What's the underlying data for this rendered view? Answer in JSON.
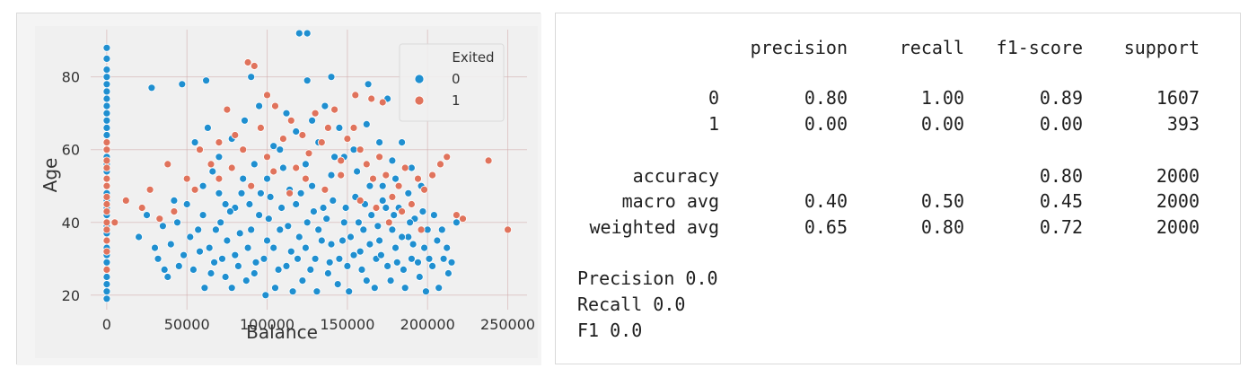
{
  "colors": {
    "class_0": "#1f8fd0",
    "class_1": "#e0735c",
    "panel_bg": "#f0f0f0",
    "grid": "#d0a8a8"
  },
  "chart_data": {
    "type": "scatter",
    "title": "",
    "xlabel": "Balance",
    "ylabel": "Age",
    "xlim": [
      -10000,
      262000
    ],
    "ylim": [
      16,
      93
    ],
    "xticks": [
      0,
      50000,
      100000,
      150000,
      200000,
      250000
    ],
    "yticks": [
      20,
      40,
      60,
      80
    ],
    "grid": true,
    "legend": {
      "title": "Exited",
      "placement": "top-right",
      "entries": [
        "0",
        "1"
      ]
    },
    "series": [
      {
        "name": "0",
        "color": "#1f8fd0",
        "points": [
          [
            0,
            19
          ],
          [
            0,
            21
          ],
          [
            0,
            23
          ],
          [
            0,
            25
          ],
          [
            0,
            27
          ],
          [
            0,
            29
          ],
          [
            0,
            31
          ],
          [
            0,
            33
          ],
          [
            0,
            35
          ],
          [
            0,
            37
          ],
          [
            0,
            39
          ],
          [
            0,
            42
          ],
          [
            0,
            44
          ],
          [
            0,
            46
          ],
          [
            0,
            48
          ],
          [
            0,
            50
          ],
          [
            0,
            52
          ],
          [
            0,
            54
          ],
          [
            0,
            56
          ],
          [
            0,
            58
          ],
          [
            0,
            60
          ],
          [
            0,
            62
          ],
          [
            0,
            64
          ],
          [
            0,
            66
          ],
          [
            0,
            68
          ],
          [
            0,
            70
          ],
          [
            0,
            72
          ],
          [
            0,
            74
          ],
          [
            0,
            76
          ],
          [
            0,
            78
          ],
          [
            0,
            80
          ],
          [
            0,
            82
          ],
          [
            0,
            85
          ],
          [
            0,
            88
          ],
          [
            120000,
            92
          ],
          [
            125000,
            92
          ],
          [
            28000,
            77
          ],
          [
            47000,
            78
          ],
          [
            62000,
            79
          ],
          [
            90000,
            80
          ],
          [
            125000,
            79
          ],
          [
            140000,
            80
          ],
          [
            163000,
            78
          ],
          [
            175000,
            74
          ],
          [
            32000,
            30
          ],
          [
            38000,
            25
          ],
          [
            45000,
            28
          ],
          [
            52000,
            36
          ],
          [
            58000,
            32
          ],
          [
            60000,
            42
          ],
          [
            65000,
            26
          ],
          [
            68000,
            38
          ],
          [
            70000,
            48
          ],
          [
            72000,
            30
          ],
          [
            75000,
            35
          ],
          [
            78000,
            22
          ],
          [
            80000,
            44
          ],
          [
            82000,
            28
          ],
          [
            85000,
            52
          ],
          [
            88000,
            33
          ],
          [
            90000,
            38
          ],
          [
            92000,
            26
          ],
          [
            95000,
            42
          ],
          [
            98000,
            30
          ],
          [
            100000,
            35
          ],
          [
            102000,
            47
          ],
          [
            105000,
            22
          ],
          [
            108000,
            38
          ],
          [
            110000,
            55
          ],
          [
            112000,
            28
          ],
          [
            115000,
            32
          ],
          [
            118000,
            45
          ],
          [
            120000,
            36
          ],
          [
            122000,
            24
          ],
          [
            125000,
            40
          ],
          [
            128000,
            50
          ],
          [
            130000,
            30
          ],
          [
            132000,
            38
          ],
          [
            135000,
            44
          ],
          [
            138000,
            26
          ],
          [
            140000,
            34
          ],
          [
            142000,
            58
          ],
          [
            145000,
            30
          ],
          [
            148000,
            40
          ],
          [
            150000,
            28
          ],
          [
            152000,
            36
          ],
          [
            155000,
            47
          ],
          [
            158000,
            32
          ],
          [
            160000,
            38
          ],
          [
            162000,
            24
          ],
          [
            165000,
            42
          ],
          [
            168000,
            30
          ],
          [
            170000,
            35
          ],
          [
            172000,
            50
          ],
          [
            175000,
            28
          ],
          [
            178000,
            38
          ],
          [
            180000,
            33
          ],
          [
            182000,
            44
          ],
          [
            185000,
            27
          ],
          [
            188000,
            36
          ],
          [
            190000,
            30
          ],
          [
            192000,
            41
          ],
          [
            195000,
            25
          ],
          [
            198000,
            33
          ],
          [
            200000,
            38
          ],
          [
            203000,
            28
          ],
          [
            206000,
            35
          ],
          [
            210000,
            30
          ],
          [
            213000,
            26
          ],
          [
            218000,
            40
          ],
          [
            55000,
            62
          ],
          [
            63000,
            66
          ],
          [
            70000,
            58
          ],
          [
            78000,
            63
          ],
          [
            86000,
            68
          ],
          [
            95000,
            72
          ],
          [
            104000,
            61
          ],
          [
            112000,
            70
          ],
          [
            118000,
            65
          ],
          [
            128000,
            68
          ],
          [
            136000,
            72
          ],
          [
            145000,
            66
          ],
          [
            154000,
            60
          ],
          [
            162000,
            67
          ],
          [
            170000,
            62
          ],
          [
            178000,
            57
          ],
          [
            184000,
            62
          ],
          [
            190000,
            55
          ],
          [
            196000,
            50
          ],
          [
            60000,
            50
          ],
          [
            66000,
            54
          ],
          [
            74000,
            45
          ],
          [
            84000,
            48
          ],
          [
            92000,
            56
          ],
          [
            100000,
            52
          ],
          [
            108000,
            60
          ],
          [
            114000,
            49
          ],
          [
            124000,
            56
          ],
          [
            132000,
            62
          ],
          [
            140000,
            53
          ],
          [
            148000,
            58
          ],
          [
            156000,
            54
          ],
          [
            164000,
            50
          ],
          [
            172000,
            46
          ],
          [
            180000,
            52
          ],
          [
            188000,
            48
          ],
          [
            40000,
            34
          ],
          [
            44000,
            40
          ],
          [
            48000,
            31
          ],
          [
            50000,
            45
          ],
          [
            54000,
            27
          ],
          [
            57000,
            38
          ],
          [
            61000,
            22
          ],
          [
            64000,
            33
          ],
          [
            67000,
            29
          ],
          [
            71000,
            40
          ],
          [
            74000,
            25
          ],
          [
            77000,
            43
          ],
          [
            80000,
            31
          ],
          [
            83000,
            37
          ],
          [
            87000,
            24
          ],
          [
            89000,
            45
          ],
          [
            93000,
            29
          ],
          [
            96000,
            48
          ],
          [
            99000,
            20
          ],
          [
            101000,
            41
          ],
          [
            104000,
            33
          ],
          [
            107000,
            27
          ],
          [
            109000,
            44
          ],
          [
            113000,
            39
          ],
          [
            116000,
            21
          ],
          [
            119000,
            30
          ],
          [
            121000,
            48
          ],
          [
            124000,
            33
          ],
          [
            127000,
            27
          ],
          [
            129000,
            43
          ],
          [
            131000,
            21
          ],
          [
            134000,
            35
          ],
          [
            137000,
            41
          ],
          [
            139000,
            29
          ],
          [
            141000,
            46
          ],
          [
            144000,
            23
          ],
          [
            147000,
            35
          ],
          [
            149000,
            44
          ],
          [
            151000,
            21
          ],
          [
            154000,
            31
          ],
          [
            157000,
            40
          ],
          [
            159000,
            27
          ],
          [
            161000,
            45
          ],
          [
            164000,
            34
          ],
          [
            167000,
            22
          ],
          [
            169000,
            39
          ],
          [
            171000,
            31
          ],
          [
            174000,
            44
          ],
          [
            177000,
            24
          ],
          [
            179000,
            42
          ],
          [
            181000,
            29
          ],
          [
            184000,
            36
          ],
          [
            186000,
            22
          ],
          [
            189000,
            40
          ],
          [
            191000,
            34
          ],
          [
            194000,
            29
          ],
          [
            197000,
            43
          ],
          [
            199000,
            21
          ],
          [
            201000,
            30
          ],
          [
            204000,
            42
          ],
          [
            207000,
            22
          ],
          [
            209000,
            38
          ],
          [
            212000,
            33
          ],
          [
            215000,
            29
          ],
          [
            20000,
            36
          ],
          [
            25000,
            42
          ],
          [
            35000,
            39
          ],
          [
            42000,
            46
          ],
          [
            30000,
            33
          ],
          [
            36000,
            27
          ]
        ]
      },
      {
        "name": "1",
        "color": "#e0735c",
        "points": [
          [
            0,
            27
          ],
          [
            0,
            32
          ],
          [
            0,
            35
          ],
          [
            0,
            38
          ],
          [
            0,
            40
          ],
          [
            0,
            43
          ],
          [
            0,
            45
          ],
          [
            0,
            47
          ],
          [
            0,
            50
          ],
          [
            0,
            52
          ],
          [
            0,
            55
          ],
          [
            0,
            57
          ],
          [
            0,
            60
          ],
          [
            0,
            62
          ],
          [
            5000,
            40
          ],
          [
            12000,
            46
          ],
          [
            22000,
            44
          ],
          [
            27000,
            49
          ],
          [
            33000,
            41
          ],
          [
            38000,
            56
          ],
          [
            42000,
            43
          ],
          [
            50000,
            52
          ],
          [
            55000,
            49
          ],
          [
            58000,
            60
          ],
          [
            65000,
            56
          ],
          [
            70000,
            62
          ],
          [
            75000,
            71
          ],
          [
            80000,
            64
          ],
          [
            85000,
            60
          ],
          [
            88000,
            84
          ],
          [
            92000,
            83
          ],
          [
            96000,
            66
          ],
          [
            100000,
            58
          ],
          [
            105000,
            72
          ],
          [
            110000,
            63
          ],
          [
            115000,
            68
          ],
          [
            118000,
            55
          ],
          [
            122000,
            64
          ],
          [
            126000,
            59
          ],
          [
            130000,
            70
          ],
          [
            134000,
            62
          ],
          [
            138000,
            66
          ],
          [
            142000,
            71
          ],
          [
            146000,
            57
          ],
          [
            150000,
            63
          ],
          [
            154000,
            66
          ],
          [
            158000,
            60
          ],
          [
            162000,
            56
          ],
          [
            166000,
            52
          ],
          [
            170000,
            58
          ],
          [
            174000,
            53
          ],
          [
            178000,
            47
          ],
          [
            182000,
            50
          ],
          [
            186000,
            55
          ],
          [
            190000,
            45
          ],
          [
            194000,
            52
          ],
          [
            198000,
            49
          ],
          [
            203000,
            53
          ],
          [
            208000,
            56
          ],
          [
            212000,
            58
          ],
          [
            218000,
            42
          ],
          [
            222000,
            41
          ],
          [
            238000,
            57
          ],
          [
            250000,
            38
          ],
          [
            70000,
            52
          ],
          [
            78000,
            55
          ],
          [
            90000,
            50
          ],
          [
            104000,
            54
          ],
          [
            114000,
            48
          ],
          [
            124000,
            52
          ],
          [
            136000,
            49
          ],
          [
            146000,
            53
          ],
          [
            158000,
            46
          ],
          [
            168000,
            44
          ],
          [
            176000,
            40
          ],
          [
            184000,
            43
          ],
          [
            196000,
            38
          ],
          [
            165000,
            74
          ],
          [
            172000,
            73
          ],
          [
            155000,
            75
          ],
          [
            100000,
            75
          ]
        ]
      }
    ]
  },
  "report": {
    "headers": [
      "precision",
      "recall",
      "f1-score",
      "support"
    ],
    "rows": [
      {
        "label": "0",
        "values": [
          "0.80",
          "1.00",
          "0.89",
          "1607"
        ]
      },
      {
        "label": "1",
        "values": [
          "0.00",
          "0.00",
          "0.00",
          "393"
        ]
      },
      {
        "label": "accuracy",
        "values": [
          "",
          "",
          "0.80",
          "2000"
        ]
      },
      {
        "label": "macro avg",
        "values": [
          "0.40",
          "0.50",
          "0.45",
          "2000"
        ]
      },
      {
        "label": "weighted avg",
        "values": [
          "0.65",
          "0.80",
          "0.72",
          "2000"
        ]
      }
    ],
    "summary": [
      "Precision 0.0",
      "Recall 0.0",
      "F1 0.0"
    ]
  }
}
